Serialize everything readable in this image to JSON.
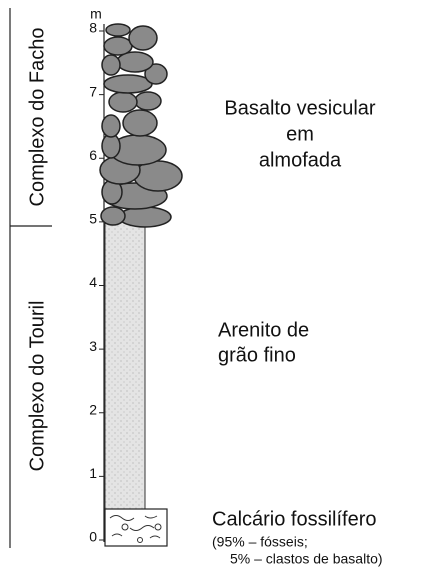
{
  "scale": {
    "unit": "m",
    "ticks": [
      0,
      1,
      2,
      3,
      4,
      5,
      6,
      7,
      8
    ]
  },
  "units": [
    {
      "label": "Complexo do Facho"
    },
    {
      "label": "Complexo do Touril"
    }
  ],
  "layers": [
    {
      "lines": [
        "Basalto vesicular",
        "em",
        "almofada"
      ]
    },
    {
      "lines": [
        "Arenito de",
        "grão fino"
      ]
    },
    {
      "lines": [
        "Calcário fossilífero",
        "(95% – fósseis;",
        "5% – clastos de basalto)"
      ]
    }
  ]
}
